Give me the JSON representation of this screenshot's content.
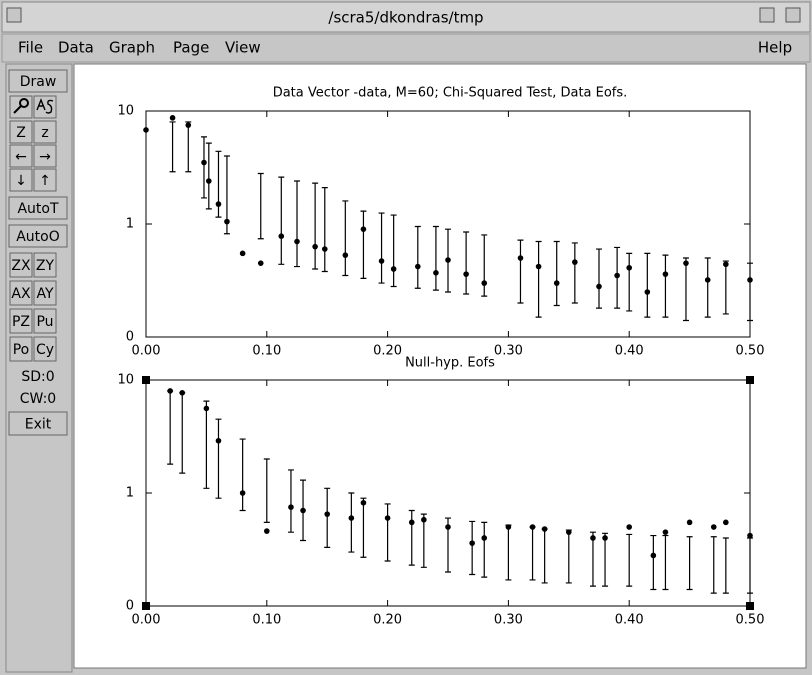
{
  "window": {
    "title": "/scra5/dkondras/tmp"
  },
  "menu": [
    "File",
    "Data",
    "Graph",
    "Page",
    "View"
  ],
  "help": "Help",
  "toolbar": [
    [
      "Draw"
    ],
    [
      "Z",
      "z"
    ],
    [
      "←",
      "→"
    ],
    [
      "↓",
      "↑"
    ],
    [
      "AutoT"
    ],
    [
      "AutoO"
    ],
    [
      "ZX",
      "ZY"
    ],
    [
      "AX",
      "AY"
    ],
    [
      "PZ",
      "Pu"
    ],
    [
      "Po",
      "Cy"
    ],
    [
      "SD:0"
    ],
    [
      "CW:0"
    ],
    [
      "Exit"
    ]
  ],
  "chart_data": [
    {
      "type": "errorbar",
      "title": "Data Vector -data, M=60; Chi-Squared Test, Data Eofs.",
      "color": "#000000",
      "log_y": true,
      "xlim": [
        0,
        0.5
      ],
      "ylim": [
        0.1,
        10
      ],
      "xticks": [
        {
          "value": 0,
          "label": "0.00"
        },
        {
          "value": 0.1,
          "label": "0.10"
        },
        {
          "value": 0.2,
          "label": "0.20"
        },
        {
          "value": 0.3,
          "label": "0.30"
        },
        {
          "value": 0.4,
          "label": "0.40"
        },
        {
          "value": 0.5,
          "label": "0.50"
        }
      ],
      "yticks": [
        {
          "value": 0.1,
          "label": "0"
        },
        1,
        10
      ],
      "x": [
        0.0,
        0.022,
        0.035,
        0.048,
        0.052,
        0.06,
        0.067,
        0.08,
        0.095,
        0.112,
        0.125,
        0.14,
        0.148,
        0.165,
        0.18,
        0.195,
        0.205,
        0.225,
        0.24,
        0.25,
        0.265,
        0.28,
        0.31,
        0.325,
        0.34,
        0.355,
        0.375,
        0.39,
        0.4,
        0.415,
        0.43,
        0.447,
        0.465,
        0.48,
        0.5
      ],
      "values": [
        6.8,
        8.7,
        7.5,
        3.5,
        2.4,
        1.5,
        1.05,
        0.55,
        0.45,
        0.78,
        0.7,
        0.63,
        0.6,
        0.53,
        0.9,
        0.47,
        0.4,
        0.42,
        0.37,
        0.48,
        0.36,
        0.3,
        0.5,
        0.42,
        0.3,
        0.46,
        0.28,
        0.35,
        0.41,
        0.25,
        0.36,
        0.45,
        0.32,
        0.44,
        0.32
      ],
      "high": [
        null,
        8,
        8,
        5.9,
        5.2,
        4.4,
        4,
        null,
        2.8,
        2.6,
        2.4,
        2.3,
        2.1,
        1.6,
        1.3,
        1.25,
        1.2,
        0.95,
        0.95,
        0.9,
        0.85,
        0.8,
        0.72,
        0.7,
        0.7,
        0.68,
        0.6,
        0.62,
        0.55,
        0.55,
        0.53,
        0.5,
        0.5,
        0.47,
        0.45
      ],
      "low": [
        null,
        2.9,
        2.9,
        1.7,
        1.36,
        1.15,
        0.82,
        null,
        0.74,
        0.44,
        0.42,
        0.4,
        0.38,
        0.35,
        0.33,
        0.3,
        0.28,
        0.27,
        0.26,
        0.25,
        0.24,
        0.23,
        0.2,
        0.15,
        0.19,
        0.2,
        0.18,
        0.18,
        0.17,
        0.15,
        0.15,
        0.14,
        0.15,
        0.16,
        0.14
      ]
    },
    {
      "type": "errorbar",
      "title": "Null-hyp. Eofs",
      "color": "#000000",
      "log_y": true,
      "xlim": [
        0,
        0.5
      ],
      "ylim": [
        0.1,
        10
      ],
      "xticks": [
        {
          "value": 0,
          "label": "0.00"
        },
        {
          "value": 0.1,
          "label": "0.10"
        },
        {
          "value": 0.2,
          "label": "0.20"
        },
        {
          "value": 0.3,
          "label": "0.30"
        },
        {
          "value": 0.4,
          "label": "0.40"
        },
        {
          "value": 0.5,
          "label": "0.50"
        }
      ],
      "yticks": [
        {
          "value": 0.1,
          "label": "0"
        },
        1,
        10
      ],
      "x": [
        0.02,
        0.03,
        0.05,
        0.06,
        0.08,
        0.1,
        0.12,
        0.13,
        0.15,
        0.17,
        0.18,
        0.2,
        0.22,
        0.23,
        0.25,
        0.27,
        0.28,
        0.3,
        0.32,
        0.33,
        0.35,
        0.37,
        0.38,
        0.4,
        0.42,
        0.43,
        0.45,
        0.47,
        0.48,
        0.5
      ],
      "values": [
        8.0,
        7.7,
        5.6,
        2.9,
        1.0,
        0.46,
        0.75,
        0.7,
        0.65,
        0.6,
        0.82,
        0.6,
        0.55,
        0.58,
        0.5,
        0.36,
        0.4,
        0.5,
        0.5,
        0.48,
        0.45,
        0.4,
        0.4,
        0.5,
        0.28,
        0.45,
        0.55,
        0.5,
        0.55,
        0.42
      ],
      "high": [
        8,
        7.7,
        6.5,
        4.5,
        3.0,
        2.0,
        1.6,
        1.3,
        1.1,
        1.0,
        0.9,
        0.8,
        0.7,
        0.65,
        0.6,
        0.56,
        0.55,
        0.52,
        0.5,
        0.48,
        0.47,
        0.45,
        0.44,
        0.43,
        0.42,
        0.42,
        0.41,
        0.41,
        0.4,
        0.4
      ],
      "low": [
        1.8,
        1.5,
        1.1,
        0.9,
        0.7,
        0.55,
        0.45,
        0.38,
        0.33,
        0.3,
        0.27,
        0.25,
        0.23,
        0.22,
        0.2,
        0.19,
        0.18,
        0.17,
        0.17,
        0.16,
        0.16,
        0.15,
        0.15,
        0.15,
        0.14,
        0.14,
        0.14,
        0.13,
        0.13,
        0.13
      ]
    }
  ]
}
